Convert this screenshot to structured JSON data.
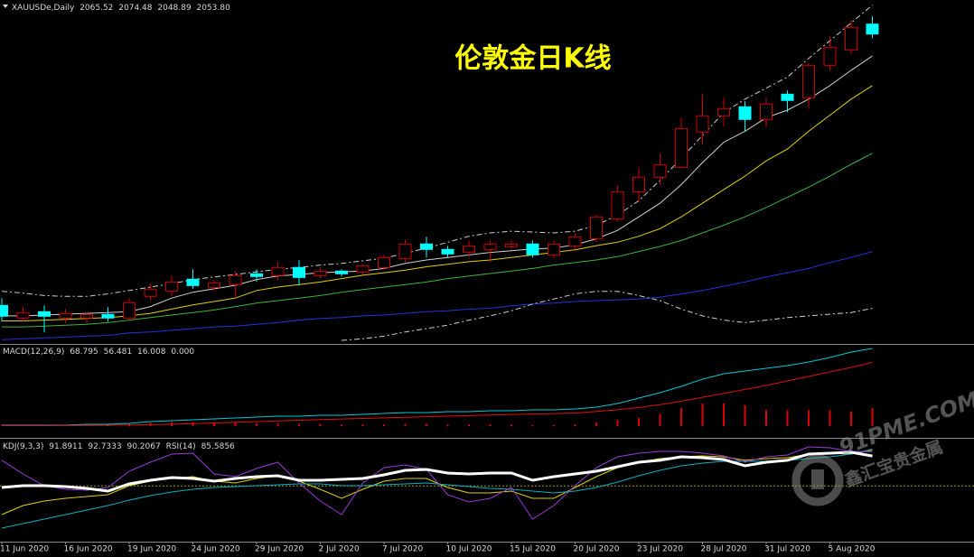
{
  "chart_data": [
    {
      "type": "candlestick",
      "symbol": "XAUUSDe,Daily",
      "title": "伦敦金日K线",
      "categories": [
        "11 Jun 2020",
        null,
        null,
        "16 Jun 2020",
        null,
        null,
        "19 Jun 2020",
        null,
        null,
        "24 Jun 2020",
        null,
        null,
        "29 Jun 2020",
        null,
        null,
        "2 Jul 2020",
        null,
        null,
        "7 Jul 2020",
        null,
        null,
        "10 Jul 2020",
        null,
        null,
        "15 Jul 2020",
        null,
        null,
        "20 Jul 2020",
        null,
        null,
        "23 Jul 2020",
        null,
        null,
        "28 Jul 2020",
        null,
        null,
        "31 Jul 2020",
        null,
        null,
        "5 Aug 2020",
        null,
        null
      ],
      "open": [
        1733.4,
        1718.5,
        1725.9,
        1718.5,
        1718.5,
        1722.7,
        1718.5,
        1744.1,
        1750.4,
        1764.3,
        1754.7,
        1757.9,
        1770.7,
        1768.6,
        1778.2,
        1768.6,
        1773.9,
        1772.8,
        1778.2,
        1788.8,
        1805.9,
        1799.5,
        1796.3,
        1799.5,
        1802.7,
        1805.9,
        1793.1,
        1803.7,
        1812.3,
        1835.7,
        1867.7,
        1884.8,
        1896.5,
        1938.1,
        1957.3,
        1967.9,
        1953.0,
        1982.8,
        1978.6,
        2016.9,
        2035.1,
        2065.52
      ],
      "high": [
        1741.9,
        1731.3,
        1733.4,
        1729.1,
        1725.9,
        1731.3,
        1741.9,
        1759.0,
        1768.6,
        1776.0,
        1763.2,
        1773.9,
        1776.0,
        1784.6,
        1786.7,
        1778.2,
        1776.0,
        1782.4,
        1793.1,
        1811.2,
        1814.4,
        1803.7,
        1810.1,
        1810.1,
        1811.2,
        1810.1,
        1810.1,
        1818.7,
        1840.0,
        1874.1,
        1896.5,
        1912.5,
        1955.1,
        1982.8,
        1978.6,
        1974.3,
        1978.6,
        1987.1,
        2019.1,
        2051.1,
        2070.2,
        2074.48
      ],
      "low": [
        1714.2,
        1714.2,
        1701.4,
        1712.1,
        1712.1,
        1714.2,
        1716.3,
        1739.8,
        1744.1,
        1752.6,
        1750.4,
        1741.9,
        1761.1,
        1763.2,
        1756.8,
        1765.4,
        1767.5,
        1769.6,
        1776.0,
        1784.6,
        1789.9,
        1789.9,
        1791.0,
        1784.6,
        1799.5,
        1789.9,
        1788.8,
        1799.5,
        1808.0,
        1832.5,
        1854.9,
        1876.2,
        1895.4,
        1923.1,
        1944.5,
        1939.1,
        1944.5,
        1961.5,
        1965.8,
        2010.6,
        2029.7,
        2048.89
      ],
      "close": [
        1720.6,
        1724.9,
        1720.6,
        1723.8,
        1722.7,
        1718.5,
        1736.6,
        1752.6,
        1761.1,
        1756.8,
        1760.0,
        1768.6,
        1767.5,
        1778.2,
        1766.4,
        1773.9,
        1770.7,
        1780.3,
        1789.9,
        1805.9,
        1799.5,
        1794.2,
        1803.7,
        1805.9,
        1805.9,
        1793.1,
        1805.9,
        1814.4,
        1837.9,
        1867.7,
        1884.8,
        1899.7,
        1942.3,
        1957.3,
        1965.8,
        1953.0,
        1971.1,
        1975.4,
        2016.9,
        2038.3,
        2061.7,
        2053.8
      ],
      "last_labels": {
        "open": "2065.52",
        "high": "2074.48",
        "low": "2048.89",
        "close": "2053.80"
      },
      "up_color": "#d00000",
      "down_color": "#00ffff",
      "ylim": [
        1690,
        2094
      ],
      "series": [
        {
          "color": "#d0d0d0",
          "values": [
            1721,
            1721,
            1722,
            1723,
            1724,
            1725,
            1726,
            1732,
            1742,
            1749,
            1753,
            1757,
            1764,
            1768,
            1770,
            1772,
            1773,
            1774,
            1777,
            1783,
            1787,
            1790,
            1793,
            1796,
            1798,
            1800,
            1801,
            1805,
            1812,
            1822,
            1838,
            1854,
            1876,
            1902,
            1926,
            1939,
            1955,
            1964,
            1977,
            1993,
            2011,
            2028
          ]
        },
        {
          "color": "#e0d000",
          "values": [
            1715,
            1715,
            1716,
            1717,
            1718,
            1719,
            1721,
            1724,
            1729,
            1734,
            1738,
            1742,
            1751,
            1755,
            1758,
            1761,
            1765,
            1769,
            1772,
            1775,
            1779,
            1782,
            1785,
            1787,
            1790,
            1793,
            1796,
            1799,
            1804,
            1808,
            1815,
            1824,
            1838,
            1854,
            1870,
            1886,
            1904,
            1918,
            1939,
            1958,
            1977,
            1993
          ]
        },
        {
          "color": "#3cb43c",
          "values": [
            1708,
            1708,
            1709,
            1710,
            1711,
            1713,
            1716,
            1719,
            1722,
            1725,
            1728,
            1732,
            1736,
            1739,
            1742,
            1745,
            1749,
            1752,
            1755,
            1758,
            1761,
            1765,
            1768,
            1771,
            1774,
            1777,
            1781,
            1784,
            1787,
            1791,
            1797,
            1803,
            1810,
            1819,
            1828,
            1838,
            1849,
            1861,
            1873,
            1886,
            1900,
            1913
          ]
        },
        {
          "color": "#2233dd",
          "values": [
            1693,
            1694,
            1695,
            1696,
            1697,
            1698,
            1701,
            1702,
            1704,
            1706,
            1708,
            1709,
            1711,
            1713,
            1716,
            1718,
            1719,
            1721,
            1722,
            1724,
            1726,
            1727,
            1729,
            1730,
            1733,
            1735,
            1736,
            1738,
            1739,
            1740,
            1741,
            1743,
            1747,
            1751,
            1756,
            1761,
            1767,
            1772,
            1777,
            1784,
            1790,
            1797
          ]
        },
        {
          "color": "#d0d0d0",
          "dash": true,
          "values": [
            1750,
            1748,
            1745,
            1744,
            1744,
            1747,
            1751,
            1755,
            1759,
            1764,
            1767,
            1770,
            1773,
            1776,
            1778,
            1781,
            1783,
            1786,
            1789,
            1795,
            1801,
            1808,
            1815,
            1819,
            1821,
            1820,
            1819,
            1821,
            1828,
            1840,
            1857,
            1881,
            1907,
            1934,
            1961,
            1977,
            1990,
            2003,
            2025,
            2046,
            2067,
            2088
          ]
        },
        {
          "color": "#d0d0d0",
          "dash": true,
          "values": [
            null,
            null,
            null,
            null,
            null,
            null,
            null,
            null,
            null,
            null,
            null,
            null,
            null,
            null,
            null,
            null,
            1692,
            1694,
            1697,
            1702,
            1706,
            1710,
            1716,
            1721,
            1727,
            1735,
            1741,
            1747,
            1750,
            1750,
            1745,
            1739,
            1729,
            1721,
            1716,
            1713,
            1716,
            1719,
            1721,
            1723,
            1725,
            1730
          ]
        }
      ]
    },
    {
      "type": "macd",
      "label": "MACD(12,26,9)",
      "ylim": [
        -5.6,
        71.2
      ],
      "series": [
        {
          "color": "#00c8d2",
          "values": [
            0.8,
            0.8,
            0.8,
            0.8,
            1.6,
            1.6,
            2.4,
            4.0,
            4.8,
            5.6,
            6.4,
            7.2,
            8.0,
            8.8,
            8.8,
            9.6,
            9.6,
            10.4,
            11.2,
            12.0,
            12.0,
            12.8,
            12.8,
            13.6,
            13.6,
            14.4,
            14.4,
            15.2,
            16.8,
            20.0,
            24.8,
            29.6,
            35.2,
            41.6,
            46.4,
            48.8,
            51.2,
            53.6,
            56.8,
            60.8,
            65.6,
            68.795
          ]
        },
        {
          "color": "#e01010",
          "values": [
            0.4,
            0.4,
            0.4,
            0.5,
            0.6,
            0.8,
            1.0,
            1.3,
            1.7,
            2.2,
            2.8,
            3.4,
            4.0,
            4.6,
            5.2,
            5.8,
            6.3,
            6.8,
            7.3,
            7.8,
            8.3,
            8.8,
            9.3,
            9.8,
            10.3,
            10.7,
            11.1,
            11.5,
            13.0,
            14.5,
            16.5,
            19.0,
            22.0,
            25.5,
            29.0,
            32.5,
            36.0,
            40.0,
            44.0,
            48.0,
            52.0,
            56.481
          ]
        }
      ],
      "histogram": {
        "color": "#e00000",
        "values": [
          0.5,
          0.5,
          0.5,
          0.5,
          0.5,
          1.0,
          2.0,
          3.0,
          3.5,
          3.5,
          3.0,
          3.0,
          2.5,
          2.5,
          2.0,
          2.0,
          1.5,
          1.5,
          1.5,
          2.0,
          2.0,
          1.5,
          1.5,
          1.5,
          1.5,
          1.0,
          1.0,
          1.5,
          3.0,
          5.5,
          7.0,
          11.0,
          16.0,
          20.0,
          20.0,
          18.5,
          14.0,
          14.0,
          14.0,
          14.0,
          13.0,
          16.008
        ]
      },
      "extra": {
        "value": 0,
        "label": "0.000"
      }
    },
    {
      "type": "oscillator",
      "label_kdj": "KDJ(9,3,3)",
      "label_rsi": "RSI(14)",
      "ylim": [
        0,
        100
      ],
      "level": 54,
      "level_color": "#a0a000",
      "series": [
        {
          "color": "#e0d000",
          "width": 1,
          "values": [
            23.8,
            33.3,
            38.1,
            41.0,
            42.9,
            44.8,
            54.3,
            59.0,
            61.9,
            63.8,
            59.0,
            57.1,
            61.9,
            64.8,
            59.0,
            50.5,
            41.0,
            50.5,
            59.0,
            61.9,
            61.9,
            52.4,
            46.7,
            46.7,
            48.6,
            41.0,
            41.0,
            52.4,
            63.8,
            73.3,
            79.0,
            82.9,
            84.8,
            85.7,
            84.8,
            81.0,
            82.9,
            83.8,
            87.6,
            88.6,
            87.6,
            91.8911
          ]
        },
        {
          "color": "#00b4c0",
          "width": 1,
          "values": [
            9.5,
            14.3,
            19.0,
            23.8,
            28.6,
            33.3,
            39.0,
            43.8,
            47.6,
            50.5,
            52.4,
            53.3,
            54.3,
            55.2,
            56.2,
            56.2,
            54.3,
            54.3,
            55.2,
            56.2,
            57.1,
            55.2,
            53.3,
            51.4,
            50.5,
            48.6,
            46.7,
            48.6,
            52.4,
            58.1,
            64.8,
            70.5,
            75.2,
            78.1,
            80.0,
            80.0,
            80.0,
            81.0,
            82.9,
            84.8,
            87.6,
            92.7333
          ]
        },
        {
          "color": "#9a3cd8",
          "width": 1,
          "values": [
            81.0,
            66.7,
            54.3,
            50.5,
            49.5,
            52.4,
            69.5,
            79.0,
            87.6,
            88.6,
            66.7,
            63.8,
            72.4,
            79.0,
            57.1,
            38.1,
            23.8,
            57.1,
            73.3,
            76.2,
            71.4,
            44.8,
            37.1,
            41.0,
            52.4,
            19.0,
            33.3,
            54.3,
            73.3,
            84.8,
            88.6,
            90.5,
            90.5,
            88.6,
            85.7,
            79.0,
            84.8,
            86.7,
            95.2,
            94.3,
            90.5,
            90.2067
          ]
        },
        {
          "color": "#ffffff",
          "width": 3,
          "values": [
            52.4,
            54.3,
            54.3,
            53.3,
            51.4,
            48.6,
            56.2,
            60.0,
            62.9,
            61.9,
            59.0,
            61.9,
            63.8,
            64.8,
            60.0,
            60.0,
            61.0,
            61.9,
            65.7,
            70.5,
            71.4,
            67.6,
            66.7,
            67.6,
            67.6,
            60.0,
            63.8,
            66.7,
            69.5,
            74.3,
            79.0,
            81.0,
            84.8,
            83.8,
            81.9,
            75.2,
            79.0,
            81.0,
            87.6,
            88.6,
            89.5,
            85.5856
          ]
        }
      ]
    }
  ],
  "watermark": {
    "brand": "91PME.COM",
    "name": "鑫汇宝贵金属"
  }
}
